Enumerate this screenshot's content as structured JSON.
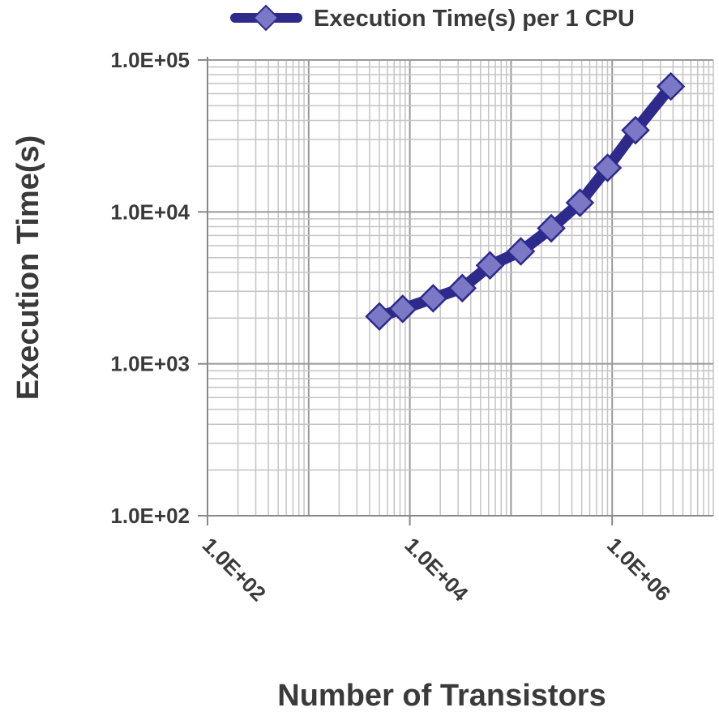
{
  "chart_data": {
    "type": "line",
    "title": "",
    "xlabel": "Number of Transistors",
    "ylabel": "Execution Time(s)",
    "x_scale": "log",
    "y_scale": "log",
    "xlim": [
      100,
      10000000
    ],
    "ylim": [
      100,
      100000
    ],
    "x_tick_labels": [
      "1.0E+02",
      "1.0E+04",
      "1.0E+06"
    ],
    "y_tick_labels": [
      "1.0E+02",
      "1.0E+03",
      "1.0E+04",
      "1.0E+05"
    ],
    "grid": true,
    "legend_position": "top",
    "series": [
      {
        "name": "Execution Time(s) per 1 CPU",
        "color": "#2e2a8c",
        "marker_color": "#7b78c6",
        "x": [
          5000,
          8500,
          17000,
          33000,
          62000,
          125000,
          250000,
          480000,
          900000,
          1700000,
          3800000
        ],
        "y": [
          2050,
          2300,
          2700,
          3150,
          4450,
          5500,
          7800,
          11500,
          19500,
          34500,
          67000
        ]
      }
    ]
  }
}
